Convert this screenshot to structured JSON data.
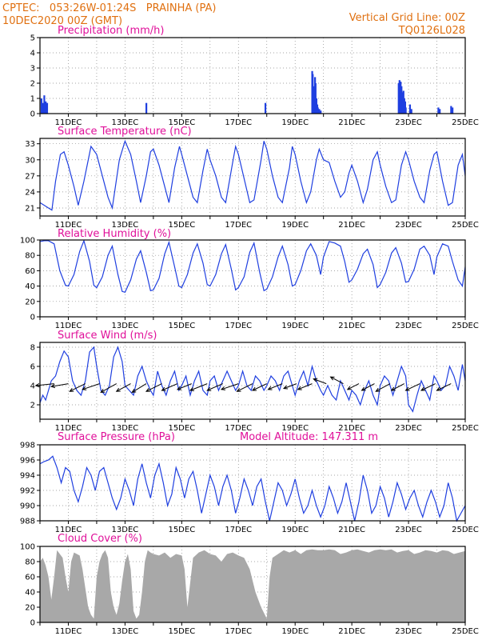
{
  "header": {
    "line1_left": "CPTEC:   053:26W-01:24S   PRAINHA (PA)",
    "line2_left": "10DEC2020 00Z (GMT)",
    "line1_right": "Vertical Grid Line: 00Z",
    "line2_right": "TQ0126L028"
  },
  "colors": {
    "header": "#e07010",
    "panel_title": "#e0109a",
    "line": "#1f3fe0",
    "cloud": "#a8a8a8",
    "grid": "#888888"
  },
  "x_axis": {
    "start_day": 10,
    "end_day": 25,
    "tick_labels": [
      "11DEC",
      "13DEC",
      "15DEC",
      "17DEC",
      "19DEC",
      "21DEC",
      "23DEC",
      "25DEC"
    ]
  },
  "chart_data": [
    {
      "type": "bar",
      "title": "Precipitation (mm/h)",
      "ylim": [
        0,
        5
      ],
      "yticks": [
        0,
        1,
        2,
        3,
        4,
        5
      ],
      "x": [
        10.05,
        10.1,
        10.15,
        10.2,
        10.25,
        13.75,
        17.95,
        19.6,
        19.62,
        19.65,
        19.67,
        19.7,
        19.72,
        19.75,
        19.78,
        19.8,
        19.85,
        19.9,
        22.65,
        22.68,
        22.7,
        22.72,
        22.75,
        22.78,
        22.8,
        22.82,
        22.85,
        22.88,
        22.9,
        23.05,
        23.1,
        24.05,
        24.1,
        24.5,
        24.55
      ],
      "values": [
        1.0,
        0.7,
        1.2,
        0.8,
        0.7,
        0.7,
        0.7,
        2.8,
        2.6,
        1.6,
        1.8,
        2.4,
        2.0,
        1.0,
        0.6,
        0.4,
        0.3,
        0.2,
        2.0,
        2.2,
        1.5,
        2.1,
        1.8,
        1.4,
        1.2,
        1.5,
        1.0,
        0.8,
        0.4,
        0.6,
        0.3,
        0.4,
        0.3,
        0.5,
        0.4
      ]
    },
    {
      "type": "line",
      "title": "Surface Temperature (nC)",
      "ylim": [
        19.5,
        34
      ],
      "yticks": [
        21,
        24,
        27,
        30,
        33
      ],
      "x": [
        10.0,
        10.15,
        10.3,
        10.42,
        10.55,
        10.72,
        10.85,
        11.0,
        11.2,
        11.35,
        11.55,
        11.8,
        12.0,
        12.2,
        12.4,
        12.55,
        12.8,
        13.0,
        13.2,
        13.4,
        13.55,
        13.75,
        13.9,
        14.0,
        14.2,
        14.4,
        14.55,
        14.75,
        14.92,
        15.0,
        15.2,
        15.4,
        15.55,
        15.75,
        15.9,
        16.0,
        16.2,
        16.4,
        16.55,
        16.78,
        16.9,
        17.0,
        17.2,
        17.4,
        17.55,
        17.8,
        17.9,
        18.0,
        18.2,
        18.4,
        18.55,
        18.8,
        18.9,
        19.0,
        19.2,
        19.4,
        19.55,
        19.75,
        19.85,
        20.0,
        20.2,
        20.4,
        20.6,
        20.75,
        20.9,
        21.0,
        21.2,
        21.4,
        21.55,
        21.75,
        21.9,
        22.0,
        22.2,
        22.4,
        22.55,
        22.75,
        22.9,
        23.0,
        23.2,
        23.4,
        23.55,
        23.75,
        23.9,
        24.0,
        24.2,
        24.4,
        24.55,
        24.75,
        24.9,
        25.0
      ],
      "values": [
        22.0,
        21.5,
        21.0,
        20.6,
        26.0,
        31.0,
        31.5,
        29.0,
        25.0,
        21.5,
        26.0,
        32.5,
        31.0,
        27.0,
        23.0,
        21.0,
        30.0,
        33.5,
        31.0,
        26.0,
        22.0,
        27.0,
        31.5,
        32.0,
        29.0,
        25.0,
        22.0,
        28.5,
        32.5,
        31.0,
        27.0,
        23.0,
        22.0,
        28.0,
        32.0,
        30.0,
        27.0,
        23.0,
        22.0,
        29.0,
        32.5,
        31.0,
        26.5,
        22.0,
        22.5,
        30.0,
        33.5,
        32.0,
        27.0,
        23.0,
        22.0,
        28.5,
        32.5,
        31.0,
        26.0,
        22.0,
        24.0,
        30.0,
        32.0,
        30.0,
        29.5,
        26.0,
        23.0,
        24.0,
        27.5,
        29.0,
        26.0,
        22.0,
        24.5,
        30.0,
        31.5,
        29.0,
        25.0,
        22.0,
        22.5,
        29.0,
        31.5,
        30.0,
        26.0,
        23.0,
        22.0,
        28.0,
        31.0,
        31.5,
        26.0,
        21.5,
        22.0,
        29.0,
        31.0,
        27.0
      ]
    },
    {
      "type": "line",
      "title": "Relative Humidity (%)",
      "ylim": [
        0,
        100
      ],
      "yticks": [
        0,
        20,
        40,
        60,
        80,
        100
      ],
      "x": [
        10.0,
        10.15,
        10.3,
        10.5,
        10.7,
        10.9,
        11.0,
        11.2,
        11.4,
        11.55,
        11.75,
        11.9,
        12.0,
        12.2,
        12.4,
        12.55,
        12.75,
        12.9,
        13.0,
        13.2,
        13.4,
        13.55,
        13.75,
        13.9,
        14.0,
        14.2,
        14.4,
        14.55,
        14.75,
        14.9,
        15.0,
        15.2,
        15.4,
        15.55,
        15.75,
        15.9,
        16.0,
        16.2,
        16.4,
        16.55,
        16.75,
        16.9,
        17.0,
        17.2,
        17.4,
        17.55,
        17.75,
        17.9,
        18.0,
        18.2,
        18.4,
        18.55,
        18.75,
        18.9,
        19.0,
        19.2,
        19.4,
        19.55,
        19.75,
        19.9,
        20.0,
        20.2,
        20.4,
        20.6,
        20.75,
        20.9,
        21.0,
        21.2,
        21.4,
        21.55,
        21.75,
        21.9,
        22.0,
        22.2,
        22.4,
        22.55,
        22.75,
        22.9,
        23.0,
        23.2,
        23.4,
        23.55,
        23.75,
        23.9,
        24.0,
        24.2,
        24.4,
        24.55,
        24.75,
        24.9,
        25.0
      ],
      "values": [
        98,
        99,
        99,
        95,
        60,
        41,
        40,
        55,
        85,
        99,
        72,
        41,
        38,
        52,
        80,
        92,
        55,
        33,
        32,
        48,
        75,
        86,
        58,
        34,
        35,
        50,
        82,
        97,
        65,
        40,
        38,
        55,
        83,
        95,
        70,
        42,
        40,
        55,
        82,
        94,
        62,
        35,
        38,
        52,
        84,
        96,
        58,
        34,
        36,
        52,
        78,
        92,
        68,
        40,
        42,
        60,
        86,
        95,
        80,
        55,
        78,
        98,
        96,
        92,
        72,
        45,
        48,
        62,
        82,
        88,
        68,
        38,
        42,
        58,
        83,
        90,
        70,
        45,
        46,
        62,
        88,
        92,
        80,
        55,
        78,
        95,
        92,
        72,
        48,
        40,
        65
      ]
    },
    {
      "type": "line",
      "title": "Surface Wind (m/s)",
      "ylim": [
        0.5,
        8.5
      ],
      "yticks": [
        2,
        4,
        6,
        8
      ],
      "x": [
        10.0,
        10.1,
        10.2,
        10.3,
        10.4,
        10.55,
        10.7,
        10.85,
        11.0,
        11.15,
        11.3,
        11.45,
        11.6,
        11.75,
        11.9,
        12.0,
        12.15,
        12.3,
        12.45,
        12.6,
        12.75,
        12.9,
        13.0,
        13.15,
        13.3,
        13.45,
        13.6,
        13.75,
        13.9,
        14.0,
        14.15,
        14.3,
        14.45,
        14.6,
        14.75,
        14.9,
        15.0,
        15.15,
        15.3,
        15.45,
        15.6,
        15.75,
        15.9,
        16.0,
        16.15,
        16.3,
        16.45,
        16.6,
        16.75,
        16.9,
        17.0,
        17.15,
        17.3,
        17.45,
        17.6,
        17.75,
        17.9,
        18.0,
        18.15,
        18.3,
        18.45,
        18.6,
        18.75,
        18.9,
        19.0,
        19.15,
        19.3,
        19.45,
        19.6,
        19.75,
        19.9,
        20.0,
        20.15,
        20.3,
        20.45,
        20.6,
        20.75,
        20.9,
        21.0,
        21.15,
        21.3,
        21.45,
        21.6,
        21.75,
        21.9,
        22.0,
        22.15,
        22.3,
        22.45,
        22.6,
        22.75,
        22.9,
        23.0,
        23.15,
        23.3,
        23.45,
        23.6,
        23.75,
        23.9,
        24.0,
        24.15,
        24.3,
        24.45,
        24.6,
        24.75,
        24.9,
        25.0
      ],
      "values": [
        2.2,
        3.0,
        2.5,
        3.5,
        4.5,
        5.0,
        6.5,
        7.6,
        7.0,
        4.5,
        3.5,
        3.0,
        4.5,
        7.5,
        8.0,
        6.0,
        3.5,
        3.0,
        4.0,
        7.0,
        8.0,
        6.5,
        4.0,
        3.5,
        3.0,
        5.0,
        6.0,
        4.5,
        3.5,
        3.0,
        5.5,
        4.0,
        3.0,
        4.5,
        5.5,
        3.5,
        4.0,
        5.0,
        3.0,
        4.5,
        5.5,
        3.5,
        3.0,
        4.5,
        5.0,
        3.5,
        4.5,
        5.5,
        4.5,
        3.5,
        4.0,
        5.5,
        4.0,
        3.5,
        5.0,
        4.5,
        3.5,
        4.0,
        5.0,
        4.5,
        3.5,
        5.0,
        5.5,
        4.0,
        3.0,
        4.5,
        5.5,
        4.0,
        6.0,
        4.5,
        3.5,
        3.0,
        4.0,
        3.0,
        2.5,
        4.5,
        3.5,
        2.5,
        3.5,
        3.0,
        2.0,
        3.5,
        4.5,
        3.0,
        2.0,
        4.0,
        5.0,
        4.5,
        3.0,
        4.5,
        6.0,
        5.0,
        2.0,
        1.3,
        3.0,
        4.5,
        3.5,
        2.5,
        5.0,
        4.5,
        3.5,
        4.0,
        6.0,
        5.0,
        3.5,
        6.2,
        4.5
      ],
      "arrows_x": [
        10.5,
        11.0,
        11.6,
        12.1,
        12.7,
        13.2,
        13.75,
        14.3,
        14.85,
        15.35,
        15.9,
        16.45,
        17.0,
        17.5,
        18.0,
        18.55,
        19.05,
        19.6,
        20.1,
        20.7,
        21.25,
        21.8,
        22.35,
        22.85,
        23.4,
        23.95,
        24.5
      ],
      "arrows_dx": [
        -0.65,
        -0.6,
        -0.55,
        -0.6,
        -0.55,
        -0.5,
        -0.5,
        -0.55,
        -0.55,
        -0.5,
        -0.6,
        -0.55,
        -0.6,
        -0.55,
        -0.5,
        -0.5,
        -0.45,
        -0.5,
        -0.45,
        -0.45,
        -0.4,
        -0.45,
        -0.5,
        -0.45,
        -0.5,
        -0.5,
        -0.5
      ],
      "arrows_dy": [
        -0.2,
        -0.3,
        -0.8,
        -0.6,
        -0.9,
        -0.8,
        -0.9,
        -0.8,
        -0.7,
        -0.6,
        -0.7,
        -0.7,
        -0.6,
        -0.8,
        -0.7,
        -0.6,
        -0.5,
        -0.6,
        0.5,
        0.7,
        -0.6,
        -0.7,
        -0.8,
        -0.7,
        -0.7,
        -0.7,
        -0.7
      ]
    },
    {
      "type": "line",
      "title": "Surface Pressure (hPa)",
      "annotation": "Model Altitude: 147.311 m",
      "ylim": [
        988,
        998
      ],
      "yticks": [
        988,
        990,
        992,
        994,
        996,
        998
      ],
      "x": [
        10.0,
        10.15,
        10.3,
        10.45,
        10.6,
        10.75,
        10.9,
        11.05,
        11.2,
        11.35,
        11.5,
        11.65,
        11.8,
        11.95,
        12.1,
        12.25,
        12.4,
        12.55,
        12.7,
        12.85,
        13.0,
        13.15,
        13.3,
        13.45,
        13.6,
        13.75,
        13.9,
        14.05,
        14.2,
        14.35,
        14.5,
        14.65,
        14.8,
        14.95,
        15.1,
        15.25,
        15.4,
        15.55,
        15.7,
        15.85,
        16.0,
        16.15,
        16.3,
        16.45,
        16.6,
        16.75,
        16.9,
        17.05,
        17.2,
        17.35,
        17.5,
        17.65,
        17.8,
        17.95,
        18.1,
        18.25,
        18.4,
        18.55,
        18.7,
        18.85,
        19.0,
        19.15,
        19.3,
        19.45,
        19.6,
        19.75,
        19.9,
        20.05,
        20.2,
        20.35,
        20.5,
        20.65,
        20.8,
        20.95,
        21.1,
        21.25,
        21.4,
        21.55,
        21.7,
        21.85,
        22.0,
        22.15,
        22.3,
        22.45,
        22.6,
        22.75,
        22.9,
        23.05,
        23.2,
        23.35,
        23.5,
        23.65,
        23.8,
        23.95,
        24.1,
        24.25,
        24.4,
        24.55,
        24.7,
        24.85,
        25.0
      ],
      "values": [
        995.5,
        995.8,
        996.0,
        996.5,
        995.0,
        993.0,
        995.0,
        994.5,
        992.0,
        990.5,
        992.5,
        995.0,
        994.0,
        992.0,
        994.5,
        995.0,
        993.0,
        991.0,
        989.5,
        991.0,
        993.5,
        992.0,
        990.0,
        993.5,
        995.5,
        993.0,
        991.0,
        994.0,
        995.5,
        993.0,
        990.0,
        991.5,
        995.0,
        993.5,
        991.0,
        993.5,
        994.5,
        992.0,
        989.0,
        991.5,
        994.0,
        992.5,
        990.0,
        992.5,
        994.0,
        992.0,
        989.0,
        991.0,
        993.5,
        992.0,
        990.0,
        992.5,
        993.5,
        990.5,
        988.0,
        990.5,
        993.0,
        992.0,
        990.0,
        991.5,
        993.5,
        991.0,
        989.0,
        990.0,
        992.0,
        990.0,
        988.5,
        990.0,
        992.5,
        991.0,
        989.0,
        990.5,
        993.0,
        990.5,
        988.0,
        990.5,
        994.0,
        992.0,
        989.0,
        990.0,
        992.5,
        991.0,
        988.5,
        990.5,
        993.0,
        991.5,
        989.5,
        991.0,
        992.0,
        990.0,
        988.5,
        990.5,
        992.0,
        990.5,
        988.5,
        990.0,
        993.0,
        991.0,
        988.0,
        989.0,
        990.0
      ]
    },
    {
      "type": "area",
      "title": "Cloud Cover (%)",
      "ylim": [
        0,
        100
      ],
      "yticks": [
        0,
        20,
        40,
        60,
        80,
        100
      ],
      "x": [
        10.0,
        10.1,
        10.2,
        10.3,
        10.4,
        10.5,
        10.6,
        10.7,
        10.8,
        10.9,
        11.0,
        11.1,
        11.2,
        11.3,
        11.4,
        11.5,
        11.6,
        11.7,
        11.8,
        11.9,
        12.0,
        12.1,
        12.2,
        12.3,
        12.4,
        12.5,
        12.6,
        12.7,
        12.8,
        12.9,
        13.0,
        13.1,
        13.2,
        13.3,
        13.4,
        13.5,
        13.6,
        13.7,
        13.8,
        13.9,
        14.0,
        14.2,
        14.4,
        14.6,
        14.8,
        15.0,
        15.1,
        15.2,
        15.4,
        15.6,
        15.8,
        16.0,
        16.2,
        16.4,
        16.6,
        16.8,
        17.0,
        17.2,
        17.4,
        17.6,
        17.8,
        18.0,
        18.1,
        18.2,
        18.4,
        18.6,
        18.8,
        19.0,
        19.2,
        19.4,
        19.6,
        19.8,
        20.0,
        20.2,
        20.4,
        20.6,
        20.8,
        21.0,
        21.2,
        21.4,
        21.6,
        21.8,
        22.0,
        22.2,
        22.4,
        22.6,
        22.8,
        23.0,
        23.2,
        23.4,
        23.6,
        23.8,
        24.0,
        24.2,
        24.4,
        24.6,
        24.8,
        25.0
      ],
      "values": [
        80,
        85,
        75,
        60,
        30,
        60,
        95,
        90,
        85,
        60,
        40,
        80,
        92,
        90,
        88,
        70,
        45,
        20,
        10,
        5,
        60,
        80,
        90,
        95,
        85,
        40,
        20,
        10,
        25,
        55,
        80,
        90,
        70,
        15,
        5,
        10,
        40,
        80,
        95,
        92,
        90,
        88,
        92,
        85,
        90,
        88,
        70,
        20,
        85,
        92,
        95,
        90,
        88,
        80,
        90,
        92,
        88,
        85,
        70,
        40,
        20,
        5,
        60,
        85,
        90,
        95,
        92,
        95,
        90,
        95,
        96,
        95,
        95,
        96,
        95,
        90,
        92,
        95,
        96,
        94,
        92,
        95,
        96,
        95,
        96,
        92,
        94,
        95,
        90,
        92,
        95,
        94,
        92,
        95,
        94,
        90,
        92,
        94
      ]
    }
  ]
}
